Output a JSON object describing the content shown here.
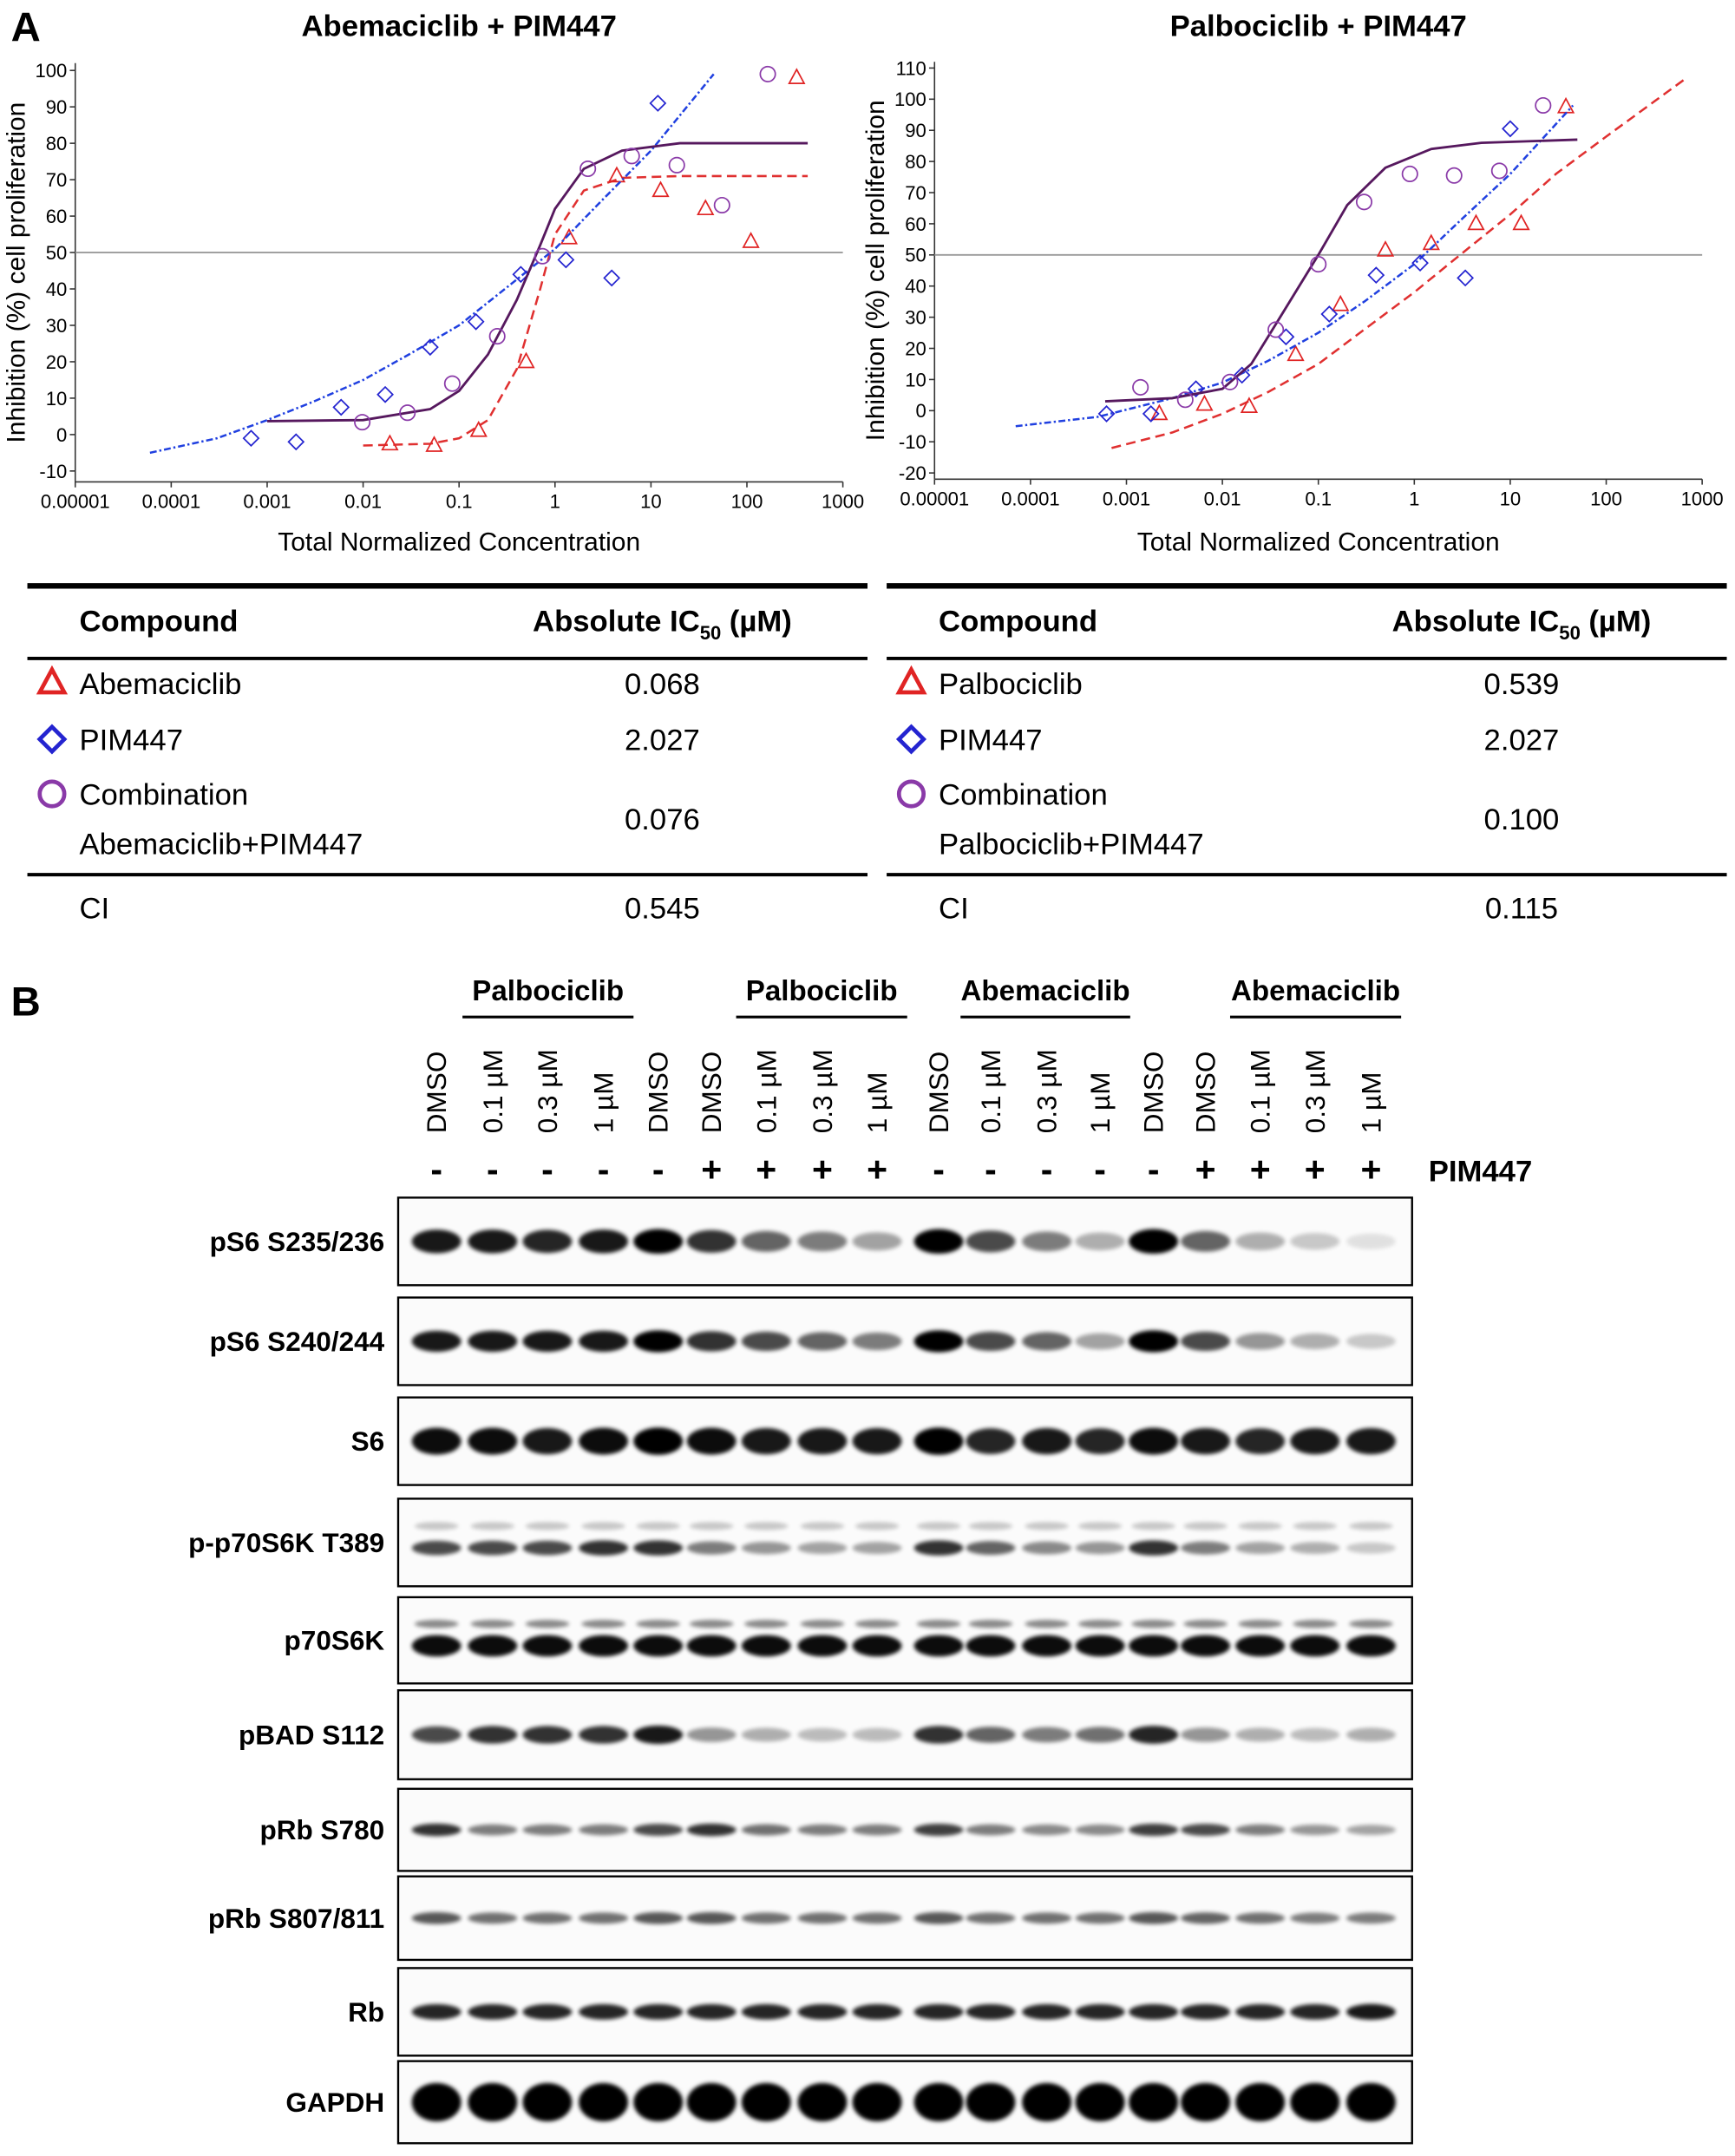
{
  "panel_labels": [
    "A",
    "B"
  ],
  "chart_data": [
    {
      "type": "scatter",
      "title": "Abemaciclib + PIM447",
      "x_label": "Total Normalized Concentration",
      "y_label": "Inhibition (%) cell proliferation",
      "x_scale": "log",
      "xlim": [
        1e-05,
        1000
      ],
      "xticks": [
        1e-05,
        0.0001,
        0.001,
        0.01,
        0.1,
        1,
        10,
        100,
        1000
      ],
      "ylim": [
        -13,
        102
      ],
      "yticks": [
        -10,
        0,
        10,
        20,
        30,
        40,
        50,
        60,
        70,
        80,
        90,
        100
      ],
      "reference_line": 50,
      "reference_color": "#9a9a9a",
      "series": [
        {
          "marker": "triangle",
          "color": "#e02424",
          "x": [
            0.019,
            0.055,
            0.16,
            0.5,
            1.4,
            4.4,
            12.6,
            37,
            110,
            330
          ],
          "values": [
            -2.6,
            -3,
            1.1,
            20,
            54,
            71,
            67,
            62,
            53,
            98
          ],
          "fit": {
            "style": "dashed",
            "color": "#e03030",
            "x": [
              0.01,
              0.05,
              0.1,
              0.2,
              0.4,
              0.7,
              1,
              2,
              5,
              20,
              430
            ],
            "values": [
              -3,
              -2.5,
              -1,
              4,
              18,
              40,
              55,
              67,
              70.5,
              71,
              71
            ]
          }
        },
        {
          "marker": "diamond",
          "color": "#2424d0",
          "x": [
            0.00068,
            0.002,
            0.0059,
            0.017,
            0.05,
            0.15,
            0.44,
            1.3,
            3.9,
            11.8
          ],
          "values": [
            -1,
            -2,
            7.5,
            11,
            24,
            31,
            44,
            48,
            43,
            91
          ],
          "fit": {
            "style": "dotted",
            "color": "#2040e0",
            "x": [
              6e-05,
              0.0003,
              0.001,
              0.003,
              0.01,
              0.03,
              0.1,
              0.3,
              1,
              3,
              10,
              45
            ],
            "values": [
              -5,
              -1,
              4,
              9,
              15,
              22,
              30,
              40,
              51,
              64,
              78,
              99
            ]
          }
        },
        {
          "marker": "circle",
          "color": "#8a3aa8",
          "x": [
            0.0098,
            0.029,
            0.085,
            0.25,
            0.74,
            2.2,
            6.3,
            18.6,
            55,
            165
          ],
          "values": [
            3.4,
            6,
            14,
            27,
            49,
            73,
            76.5,
            74,
            63,
            99
          ],
          "fit": {
            "style": "solid",
            "color": "#56185e",
            "x": [
              0.001,
              0.01,
              0.05,
              0.1,
              0.2,
              0.4,
              0.7,
              1,
              2,
              5,
              20,
              430
            ],
            "values": [
              3.7,
              4,
              7,
              12,
              22,
              37,
              52,
              62,
              73,
              78,
              80,
              80
            ]
          }
        }
      ]
    },
    {
      "type": "scatter",
      "title": "Palbociclib + PIM447",
      "x_label": "Total Normalized Concentration",
      "y_label": "Inhibition (%) cell proliferation",
      "x_scale": "log",
      "xlim": [
        1e-05,
        1000
      ],
      "xticks": [
        1e-05,
        0.0001,
        0.001,
        0.01,
        0.1,
        1,
        10,
        100,
        1000
      ],
      "ylim": [
        -22,
        112
      ],
      "yticks": [
        -20,
        -10,
        0,
        10,
        20,
        30,
        40,
        50,
        60,
        70,
        80,
        90,
        100,
        110
      ],
      "reference_line": 50,
      "reference_color": "#9a9a9a",
      "series": [
        {
          "marker": "triangle",
          "color": "#e02424",
          "x": [
            0.0022,
            0.0065,
            0.019,
            0.058,
            0.17,
            0.5,
            1.5,
            4.4,
            13,
            38
          ],
          "values": [
            -1,
            2,
            1.3,
            18,
            34,
            51.5,
            53.6,
            60,
            60,
            97.5
          ],
          "fit": {
            "style": "dashed",
            "color": "#e03030",
            "x": [
              0.0007,
              0.003,
              0.01,
              0.03,
              0.1,
              0.3,
              1,
              3,
              10,
              30,
              100,
              700
            ],
            "values": [
              -12,
              -7,
              -1,
              6,
              15,
              26,
              38,
              50,
              63,
              76,
              88,
              107
            ]
          }
        },
        {
          "marker": "diamond",
          "color": "#2424d0",
          "x": [
            0.00062,
            0.0018,
            0.0053,
            0.016,
            0.046,
            0.13,
            0.4,
            1.15,
            3.4,
            10
          ],
          "values": [
            -1,
            -1,
            7,
            11.4,
            23.7,
            31,
            43.5,
            47.4,
            42.6,
            90.5
          ],
          "fit": {
            "style": "dotted",
            "color": "#2040e0",
            "x": [
              7e-05,
              0.0005,
              0.003,
              0.01,
              0.03,
              0.1,
              0.3,
              1,
              3,
              10,
              45
            ],
            "values": [
              -5,
              -2,
              4,
              9,
              16,
              25,
              35,
              47,
              61,
              76,
              98
            ]
          }
        },
        {
          "marker": "circle",
          "color": "#8a3aa8",
          "x": [
            0.0014,
            0.0041,
            0.012,
            0.036,
            0.1,
            0.3,
            0.9,
            2.6,
            7.7,
            22
          ],
          "values": [
            7.5,
            3.5,
            9.2,
            26,
            47,
            67,
            76,
            75.5,
            77,
            98
          ],
          "fit": {
            "style": "solid",
            "color": "#56185e",
            "x": [
              0.0006,
              0.003,
              0.01,
              0.02,
              0.04,
              0.1,
              0.2,
              0.5,
              1.5,
              5,
              50
            ],
            "values": [
              3,
              4,
              7,
              15,
              30,
              50,
              66,
              78,
              84,
              86,
              87
            ]
          }
        }
      ]
    }
  ],
  "tables": [
    {
      "header": {
        "compound": "Compound",
        "ic": "Absolute IC",
        "sub": "50",
        "unit": "(µM)"
      },
      "rows": [
        {
          "label": [
            "Abemaciclib"
          ],
          "value": "0.068"
        },
        {
          "label": [
            "PIM447"
          ],
          "value": "2.027"
        },
        {
          "label": [
            "Combination",
            "Abemaciclib+PIM447"
          ],
          "value": "0.076"
        }
      ],
      "footer": {
        "label": "CI",
        "value": "0.545"
      }
    },
    {
      "header": {
        "compound": "Compound",
        "ic": "Absolute IC",
        "sub": "50",
        "unit": "(µM)"
      },
      "rows": [
        {
          "label": [
            "Palbociclib"
          ],
          "value": "0.539"
        },
        {
          "label": [
            "PIM447"
          ],
          "value": "2.027"
        },
        {
          "label": [
            "Combination",
            "Palbociclib+PIM447"
          ],
          "value": "0.100"
        }
      ],
      "footer": {
        "label": "CI",
        "value": "0.115"
      }
    }
  ],
  "blot": {
    "groups": [
      "Palbociclib",
      "Palbociclib",
      "Abemaciclib",
      "Abemaciclib"
    ],
    "lanes": [
      "DMSO",
      "0.1 µM",
      "0.3 µM",
      "1 µM",
      "DMSO",
      "DMSO",
      "0.1 µM",
      "0.3 µM",
      "1 µM",
      "DMSO",
      "0.1 µM",
      "0.3 µM",
      "1 µM",
      "DMSO",
      "DMSO",
      "0.1 µM",
      "0.3 µM",
      "1 µM"
    ],
    "treatment_label": "PIM447",
    "treatment": [
      "-",
      "-",
      "-",
      "-",
      "-",
      "+",
      "+",
      "+",
      "+",
      "-",
      "-",
      "-",
      "-",
      "-",
      "+",
      "+",
      "+",
      "+"
    ],
    "rows": [
      "pS6 S235/236",
      "pS6 S240/244",
      "S6",
      "p-p70S6K T389",
      "p70S6K",
      "pBAD S112",
      "pRb S780",
      "pRb S807/811",
      "Rb",
      "GAPDH"
    ]
  }
}
